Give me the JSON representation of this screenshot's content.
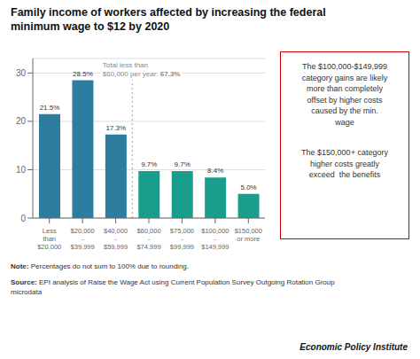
{
  "chart_data": {
    "type": "bar",
    "title": "Family income of workers affected by increasing the federal\nminimum wage to $12 by 2020",
    "categories": [
      "Less\nthan\n$20,000",
      "$20,000\n-\n$39,999",
      "$40,000\n-\n$59,999",
      "$60,000\n-\n$74,999",
      "$75,000\n-\n$99,999",
      "$100,000\n-\n$149,999",
      "$150,000\nor more"
    ],
    "values": [
      21.5,
      28.5,
      17.3,
      9.7,
      9.7,
      8.4,
      5.0
    ],
    "value_labels": [
      "21.5%",
      "28.5%",
      "17.3%",
      "9.7%",
      "9.7%",
      "8.4%",
      "5.0%"
    ],
    "data_labels": true,
    "colors": [
      "#2E7DA0",
      "#2E7DA0",
      "#2E7DA0",
      "#1A9E8C",
      "#1A9E8C",
      "#1A9E8C",
      "#1A9E8C"
    ],
    "ylim": [
      0,
      33
    ],
    "yticks": [
      0,
      10,
      20,
      30
    ],
    "grid": true,
    "annotations": [
      "Total less than\n$60,000 per year: ",
      "67.3%",
      "The $100,000-$149,999\ncategory gains are likely\nmore than completely\noffset by higher costs\ncaused by the min.\nwage",
      "The $150,000+ category\nhigher costs greatly\nexceed  the benefits",
      "Note:",
      " Percentages do not sum to 100% due to rounding.",
      "Source:",
      " EPI analysis of Raise the Wage Act using Current Population Survey Outgoing Rotation Group\nmicrodata",
      "Economic Policy Institute"
    ]
  }
}
